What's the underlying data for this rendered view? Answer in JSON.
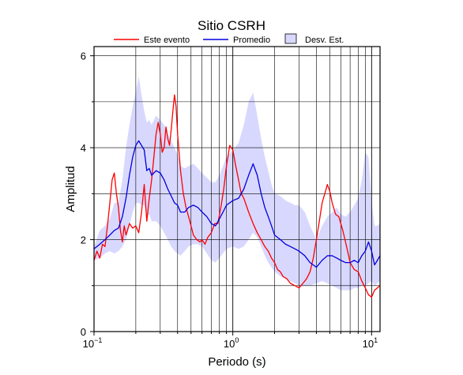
{
  "chart_data": {
    "type": "line",
    "title": "Sitio CSRH",
    "xlabel": "Periodo (s)",
    "ylabel": "Amplitud",
    "xscale": "log",
    "xlim": [
      0.1,
      11.5
    ],
    "ylim": [
      0,
      6.2
    ],
    "grid": true,
    "legend_position": "top",
    "x_ticks": [
      {
        "value": 0.1,
        "base": "10",
        "exp": "−1"
      },
      {
        "value": 1,
        "base": "10",
        "exp": "0"
      },
      {
        "value": 10,
        "base": "10",
        "exp": "1"
      }
    ],
    "y_ticks": [
      {
        "value": 0,
        "label": "0"
      },
      {
        "value": 2,
        "label": "2"
      },
      {
        "value": 4,
        "label": "4"
      },
      {
        "value": 6,
        "label": "6"
      }
    ],
    "series": [
      {
        "name": "Este evento",
        "color": "#ff0000",
        "points": [
          [
            0.1,
            1.55
          ],
          [
            0.105,
            1.75
          ],
          [
            0.11,
            1.6
          ],
          [
            0.115,
            1.9
          ],
          [
            0.12,
            1.85
          ],
          [
            0.125,
            2.3
          ],
          [
            0.13,
            2.8
          ],
          [
            0.135,
            3.3
          ],
          [
            0.14,
            3.45
          ],
          [
            0.145,
            3.0
          ],
          [
            0.15,
            2.7
          ],
          [
            0.155,
            2.2
          ],
          [
            0.16,
            1.95
          ],
          [
            0.165,
            2.3
          ],
          [
            0.17,
            2.1
          ],
          [
            0.18,
            2.35
          ],
          [
            0.19,
            2.25
          ],
          [
            0.2,
            2.3
          ],
          [
            0.21,
            2.15
          ],
          [
            0.22,
            2.6
          ],
          [
            0.23,
            3.2
          ],
          [
            0.24,
            2.4
          ],
          [
            0.25,
            2.9
          ],
          [
            0.26,
            3.3
          ],
          [
            0.27,
            3.8
          ],
          [
            0.28,
            4.3
          ],
          [
            0.29,
            4.55
          ],
          [
            0.3,
            4.3
          ],
          [
            0.31,
            3.9
          ],
          [
            0.32,
            4.0
          ],
          [
            0.33,
            4.45
          ],
          [
            0.34,
            4.2
          ],
          [
            0.35,
            4.05
          ],
          [
            0.36,
            4.4
          ],
          [
            0.37,
            4.8
          ],
          [
            0.38,
            5.15
          ],
          [
            0.39,
            4.9
          ],
          [
            0.4,
            4.3
          ],
          [
            0.42,
            3.5
          ],
          [
            0.44,
            3.0
          ],
          [
            0.46,
            2.7
          ],
          [
            0.48,
            2.5
          ],
          [
            0.5,
            2.3
          ],
          [
            0.52,
            2.1
          ],
          [
            0.55,
            2.0
          ],
          [
            0.58,
            1.95
          ],
          [
            0.6,
            2.0
          ],
          [
            0.63,
            1.9
          ],
          [
            0.66,
            2.05
          ],
          [
            0.7,
            2.15
          ],
          [
            0.74,
            2.35
          ],
          [
            0.78,
            2.35
          ],
          [
            0.82,
            2.7
          ],
          [
            0.86,
            3.1
          ],
          [
            0.9,
            3.6
          ],
          [
            0.95,
            4.05
          ],
          [
            1.0,
            3.95
          ],
          [
            1.05,
            3.6
          ],
          [
            1.1,
            3.3
          ],
          [
            1.15,
            3.0
          ],
          [
            1.2,
            2.9
          ],
          [
            1.3,
            2.6
          ],
          [
            1.4,
            2.35
          ],
          [
            1.5,
            2.15
          ],
          [
            1.6,
            2.0
          ],
          [
            1.7,
            1.85
          ],
          [
            1.8,
            1.75
          ],
          [
            1.9,
            1.6
          ],
          [
            2.0,
            1.5
          ],
          [
            2.1,
            1.35
          ],
          [
            2.2,
            1.3
          ],
          [
            2.3,
            1.2
          ],
          [
            2.45,
            1.15
          ],
          [
            2.6,
            1.05
          ],
          [
            2.8,
            1.0
          ],
          [
            3.0,
            0.95
          ],
          [
            3.2,
            1.05
          ],
          [
            3.4,
            1.15
          ],
          [
            3.6,
            1.3
          ],
          [
            3.8,
            1.6
          ],
          [
            4.0,
            2.0
          ],
          [
            4.2,
            2.4
          ],
          [
            4.4,
            2.8
          ],
          [
            4.6,
            3.0
          ],
          [
            4.8,
            3.2
          ],
          [
            5.0,
            3.05
          ],
          [
            5.2,
            2.8
          ],
          [
            5.5,
            2.55
          ],
          [
            5.8,
            2.5
          ],
          [
            6.2,
            2.2
          ],
          [
            6.6,
            1.85
          ],
          [
            7.0,
            1.5
          ],
          [
            7.5,
            1.35
          ],
          [
            8.0,
            1.3
          ],
          [
            8.5,
            1.1
          ],
          [
            9.0,
            0.95
          ],
          [
            9.5,
            0.8
          ],
          [
            10.0,
            0.75
          ],
          [
            10.5,
            0.9
          ],
          [
            11.0,
            0.95
          ],
          [
            11.5,
            1.0
          ]
        ]
      },
      {
        "name": "Promedio",
        "color": "#0000dd",
        "points": [
          [
            0.1,
            1.8
          ],
          [
            0.11,
            1.9
          ],
          [
            0.12,
            2.0
          ],
          [
            0.13,
            2.1
          ],
          [
            0.14,
            2.2
          ],
          [
            0.15,
            2.25
          ],
          [
            0.16,
            2.5
          ],
          [
            0.17,
            2.9
          ],
          [
            0.18,
            3.4
          ],
          [
            0.19,
            3.8
          ],
          [
            0.2,
            4.05
          ],
          [
            0.21,
            4.15
          ],
          [
            0.22,
            4.05
          ],
          [
            0.23,
            3.95
          ],
          [
            0.24,
            3.5
          ],
          [
            0.25,
            3.55
          ],
          [
            0.26,
            3.4
          ],
          [
            0.27,
            3.45
          ],
          [
            0.28,
            3.5
          ],
          [
            0.3,
            3.45
          ],
          [
            0.32,
            3.3
          ],
          [
            0.34,
            3.1
          ],
          [
            0.36,
            2.95
          ],
          [
            0.38,
            2.8
          ],
          [
            0.4,
            2.75
          ],
          [
            0.42,
            2.6
          ],
          [
            0.45,
            2.6
          ],
          [
            0.48,
            2.7
          ],
          [
            0.52,
            2.75
          ],
          [
            0.56,
            2.7
          ],
          [
            0.6,
            2.6
          ],
          [
            0.65,
            2.5
          ],
          [
            0.7,
            2.35
          ],
          [
            0.75,
            2.3
          ],
          [
            0.8,
            2.45
          ],
          [
            0.85,
            2.6
          ],
          [
            0.9,
            2.75
          ],
          [
            1.0,
            2.85
          ],
          [
            1.1,
            2.9
          ],
          [
            1.2,
            3.1
          ],
          [
            1.3,
            3.4
          ],
          [
            1.4,
            3.65
          ],
          [
            1.5,
            3.4
          ],
          [
            1.6,
            3.0
          ],
          [
            1.7,
            2.7
          ],
          [
            1.8,
            2.5
          ],
          [
            1.9,
            2.3
          ],
          [
            2.0,
            2.1
          ],
          [
            2.2,
            2.0
          ],
          [
            2.4,
            1.9
          ],
          [
            2.6,
            1.85
          ],
          [
            2.8,
            1.8
          ],
          [
            3.0,
            1.75
          ],
          [
            3.3,
            1.65
          ],
          [
            3.6,
            1.5
          ],
          [
            4.0,
            1.4
          ],
          [
            4.4,
            1.55
          ],
          [
            4.8,
            1.65
          ],
          [
            5.2,
            1.65
          ],
          [
            5.6,
            1.6
          ],
          [
            6.0,
            1.55
          ],
          [
            6.5,
            1.5
          ],
          [
            7.0,
            1.5
          ],
          [
            7.5,
            1.55
          ],
          [
            8.0,
            1.5
          ],
          [
            8.5,
            1.65
          ],
          [
            9.0,
            1.75
          ],
          [
            9.5,
            1.95
          ],
          [
            10.0,
            1.75
          ],
          [
            10.5,
            1.45
          ],
          [
            11.0,
            1.55
          ],
          [
            11.5,
            1.65
          ]
        ]
      }
    ],
    "band": {
      "name": "Desv. Est.",
      "color": "#d8d8ff",
      "upper": [
        [
          0.1,
          1.85
        ],
        [
          0.11,
          2.2
        ],
        [
          0.12,
          2.3
        ],
        [
          0.13,
          2.45
        ],
        [
          0.14,
          2.8
        ],
        [
          0.15,
          2.8
        ],
        [
          0.16,
          3.3
        ],
        [
          0.17,
          4.0
        ],
        [
          0.18,
          4.5
        ],
        [
          0.19,
          4.9
        ],
        [
          0.2,
          5.2
        ],
        [
          0.21,
          5.55
        ],
        [
          0.22,
          5.15
        ],
        [
          0.23,
          4.8
        ],
        [
          0.24,
          4.55
        ],
        [
          0.25,
          4.6
        ],
        [
          0.26,
          4.5
        ],
        [
          0.28,
          4.7
        ],
        [
          0.3,
          4.6
        ],
        [
          0.32,
          4.5
        ],
        [
          0.34,
          4.3
        ],
        [
          0.36,
          4.15
        ],
        [
          0.38,
          4.0
        ],
        [
          0.4,
          3.85
        ],
        [
          0.42,
          3.6
        ],
        [
          0.45,
          3.55
        ],
        [
          0.48,
          3.6
        ],
        [
          0.52,
          3.65
        ],
        [
          0.56,
          3.55
        ],
        [
          0.6,
          3.45
        ],
        [
          0.65,
          3.35
        ],
        [
          0.7,
          3.25
        ],
        [
          0.75,
          3.25
        ],
        [
          0.8,
          3.4
        ],
        [
          0.85,
          3.6
        ],
        [
          0.9,
          3.8
        ],
        [
          1.0,
          3.95
        ],
        [
          1.1,
          4.1
        ],
        [
          1.2,
          4.5
        ],
        [
          1.3,
          5.0
        ],
        [
          1.4,
          5.2
        ],
        [
          1.5,
          4.7
        ],
        [
          1.6,
          4.2
        ],
        [
          1.7,
          3.8
        ],
        [
          1.8,
          3.5
        ],
        [
          1.9,
          3.2
        ],
        [
          2.0,
          3.0
        ],
        [
          2.2,
          2.95
        ],
        [
          2.4,
          2.85
        ],
        [
          2.6,
          2.8
        ],
        [
          2.8,
          2.75
        ],
        [
          3.0,
          2.75
        ],
        [
          3.3,
          2.6
        ],
        [
          3.6,
          2.3
        ],
        [
          4.0,
          2.0
        ],
        [
          4.4,
          2.3
        ],
        [
          4.8,
          2.5
        ],
        [
          5.2,
          2.6
        ],
        [
          5.6,
          2.7
        ],
        [
          6.0,
          2.55
        ],
        [
          6.5,
          2.5
        ],
        [
          7.0,
          2.6
        ],
        [
          7.5,
          2.75
        ],
        [
          8.0,
          2.9
        ],
        [
          8.5,
          3.3
        ],
        [
          9.0,
          3.9
        ],
        [
          9.5,
          3.8
        ],
        [
          10.0,
          2.8
        ],
        [
          10.5,
          2.3
        ],
        [
          11.0,
          2.3
        ],
        [
          11.5,
          2.35
        ]
      ],
      "lower": [
        [
          0.1,
          1.55
        ],
        [
          0.11,
          1.6
        ],
        [
          0.12,
          1.7
        ],
        [
          0.13,
          1.75
        ],
        [
          0.14,
          1.7
        ],
        [
          0.15,
          1.75
        ],
        [
          0.16,
          1.85
        ],
        [
          0.17,
          2.0
        ],
        [
          0.18,
          2.3
        ],
        [
          0.19,
          2.6
        ],
        [
          0.2,
          2.8
        ],
        [
          0.21,
          2.8
        ],
        [
          0.22,
          2.75
        ],
        [
          0.23,
          2.75
        ],
        [
          0.24,
          2.5
        ],
        [
          0.25,
          2.55
        ],
        [
          0.26,
          2.4
        ],
        [
          0.28,
          2.4
        ],
        [
          0.3,
          2.3
        ],
        [
          0.32,
          2.15
        ],
        [
          0.34,
          2.0
        ],
        [
          0.36,
          1.85
        ],
        [
          0.38,
          1.75
        ],
        [
          0.4,
          1.7
        ],
        [
          0.42,
          1.65
        ],
        [
          0.45,
          1.75
        ],
        [
          0.48,
          1.85
        ],
        [
          0.52,
          1.9
        ],
        [
          0.56,
          1.9
        ],
        [
          0.6,
          1.85
        ],
        [
          0.65,
          1.7
        ],
        [
          0.7,
          1.55
        ],
        [
          0.75,
          1.5
        ],
        [
          0.8,
          1.6
        ],
        [
          0.85,
          1.7
        ],
        [
          0.9,
          1.8
        ],
        [
          1.0,
          1.85
        ],
        [
          1.1,
          1.8
        ],
        [
          1.2,
          1.85
        ],
        [
          1.3,
          2.0
        ],
        [
          1.4,
          2.15
        ],
        [
          1.5,
          2.05
        ],
        [
          1.6,
          1.85
        ],
        [
          1.7,
          1.65
        ],
        [
          1.8,
          1.5
        ],
        [
          1.9,
          1.4
        ],
        [
          2.0,
          1.3
        ],
        [
          2.2,
          1.2
        ],
        [
          2.4,
          1.15
        ],
        [
          2.6,
          1.1
        ],
        [
          2.8,
          1.05
        ],
        [
          3.0,
          1.0
        ],
        [
          3.3,
          1.0
        ],
        [
          3.6,
          1.0
        ],
        [
          4.0,
          1.05
        ],
        [
          4.4,
          1.1
        ],
        [
          4.8,
          1.05
        ],
        [
          5.2,
          1.0
        ],
        [
          5.6,
          0.95
        ],
        [
          6.0,
          0.9
        ],
        [
          6.5,
          0.9
        ],
        [
          7.0,
          0.9
        ],
        [
          7.5,
          0.95
        ],
        [
          8.0,
          0.95
        ],
        [
          8.5,
          1.0
        ],
        [
          9.0,
          1.0
        ],
        [
          9.5,
          1.05
        ],
        [
          10.0,
          1.1
        ],
        [
          10.5,
          1.0
        ],
        [
          11.0,
          1.05
        ],
        [
          11.5,
          1.1
        ]
      ]
    }
  }
}
